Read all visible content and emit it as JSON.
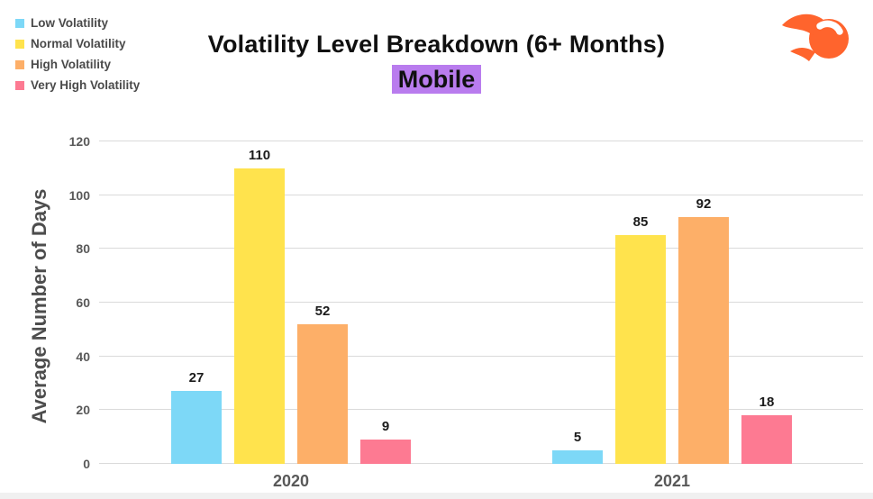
{
  "header": {
    "title": "Volatility Level Breakdown (6+ Months)",
    "subtitle": "Mobile",
    "subtitle_highlight_color": "#b97cee"
  },
  "logo": {
    "icon": "semrush-flame-ball-icon",
    "color": "#ff642d"
  },
  "legend": {
    "position": "top-left",
    "items": [
      {
        "label": "Low Volatility",
        "color": "#7dd8f7"
      },
      {
        "label": "Normal Volatility",
        "color": "#ffe34d"
      },
      {
        "label": "High Volatility",
        "color": "#fdaf68"
      },
      {
        "label": "Very High Volatility",
        "color": "#fd7a92"
      }
    ]
  },
  "chart_data": {
    "type": "bar",
    "categories": [
      "2020",
      "2021"
    ],
    "series": [
      {
        "name": "Low Volatility",
        "color": "#7dd8f7",
        "values": [
          27,
          5
        ]
      },
      {
        "name": "Normal Volatility",
        "color": "#ffe34d",
        "values": [
          110,
          85
        ]
      },
      {
        "name": "High Volatility",
        "color": "#fdaf68",
        "values": [
          52,
          92
        ]
      },
      {
        "name": "Very High Volatility",
        "color": "#fd7a92",
        "values": [
          9,
          18
        ]
      }
    ],
    "title": "Volatility Level Breakdown (6+ Months)",
    "subtitle": "Mobile",
    "xlabel": "",
    "ylabel": "Average Number of Days",
    "ylim": [
      0,
      120
    ],
    "yticks": [
      0,
      20,
      40,
      60,
      80,
      100,
      120
    ],
    "grid": "horizontal",
    "legend_position": "top-left",
    "bar_value_labels": true
  }
}
